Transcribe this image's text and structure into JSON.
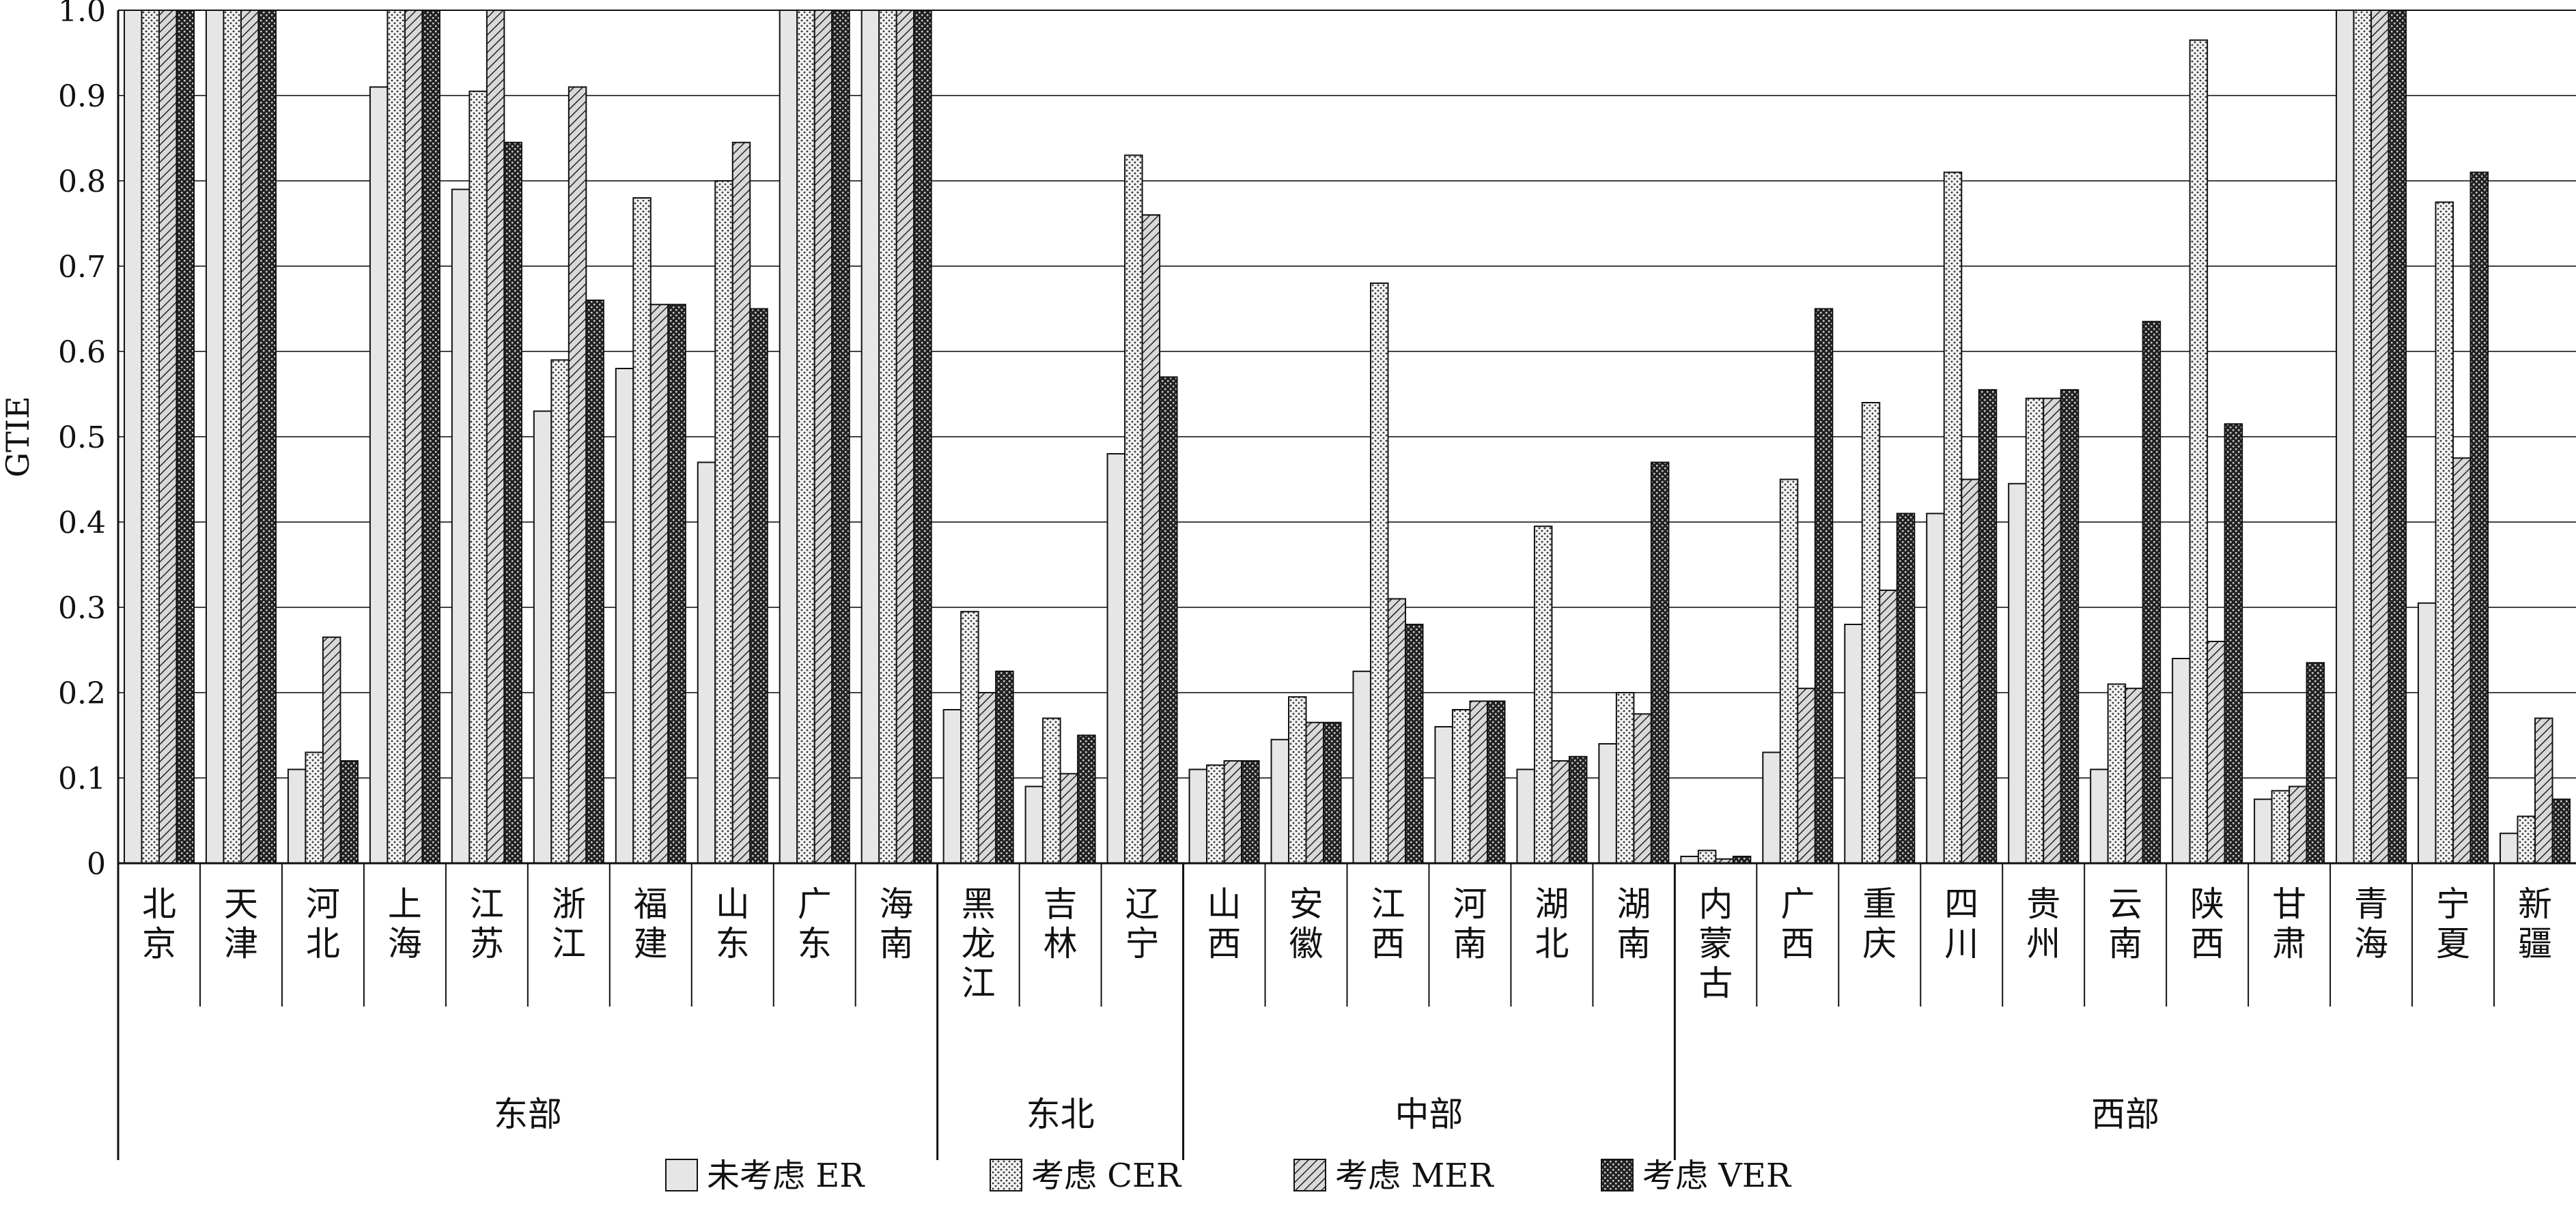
{
  "chart_data": {
    "type": "bar",
    "ylabel": "GTIE",
    "ylim": [
      0,
      1.0
    ],
    "yticks": [
      "0",
      "0.1",
      "0.2",
      "0.3",
      "0.4",
      "0.5",
      "0.6",
      "0.7",
      "0.8",
      "0.9",
      "1.0"
    ],
    "grid": true,
    "legend_position": "bottom",
    "categories": [
      "北京",
      "天津",
      "河北",
      "上海",
      "江苏",
      "浙江",
      "福建",
      "山东",
      "广东",
      "海南",
      "黑龙江",
      "吉林",
      "辽宁",
      "山西",
      "安徽",
      "江西",
      "河南",
      "湖北",
      "湖南",
      "内蒙古",
      "广西",
      "重庆",
      "四川",
      "贵州",
      "云南",
      "陕西",
      "甘肃",
      "青海",
      "宁夏",
      "新疆"
    ],
    "groups": [
      {
        "label": "东部",
        "start": 0,
        "end": 9
      },
      {
        "label": "东北",
        "start": 10,
        "end": 12
      },
      {
        "label": "中部",
        "start": 13,
        "end": 18
      },
      {
        "label": "西部",
        "start": 19,
        "end": 29
      }
    ],
    "series": [
      {
        "name": "未考虑 ER",
        "pattern": "light",
        "values": [
          1.0,
          1.0,
          0.11,
          0.91,
          0.79,
          0.53,
          0.58,
          0.47,
          1.0,
          1.0,
          0.18,
          0.09,
          0.48,
          0.11,
          0.145,
          0.225,
          0.16,
          0.11,
          0.14,
          0.008,
          0.13,
          0.28,
          0.41,
          0.445,
          0.11,
          0.24,
          0.075,
          1.0,
          0.305,
          0.035
        ]
      },
      {
        "name": "考虑 CER",
        "pattern": "dotted",
        "values": [
          1.0,
          1.0,
          0.13,
          1.0,
          0.905,
          0.59,
          0.78,
          0.8,
          1.0,
          1.0,
          0.295,
          0.17,
          0.83,
          0.115,
          0.195,
          0.68,
          0.18,
          0.395,
          0.2,
          0.015,
          0.45,
          0.54,
          0.81,
          0.545,
          0.21,
          0.965,
          0.085,
          1.0,
          0.775,
          0.055
        ]
      },
      {
        "name": "考虑 MER",
        "pattern": "hatched",
        "values": [
          1.0,
          1.0,
          0.265,
          1.0,
          1.0,
          0.91,
          0.655,
          0.845,
          1.0,
          1.0,
          0.2,
          0.105,
          0.76,
          0.12,
          0.165,
          0.31,
          0.19,
          0.12,
          0.175,
          0.005,
          0.205,
          0.32,
          0.45,
          0.545,
          0.205,
          0.26,
          0.09,
          1.0,
          0.475,
          0.17
        ]
      },
      {
        "name": "考虑 VER",
        "pattern": "dark",
        "values": [
          1.0,
          1.0,
          0.12,
          1.0,
          0.845,
          0.66,
          0.655,
          0.65,
          1.0,
          1.0,
          0.225,
          0.15,
          0.57,
          0.12,
          0.165,
          0.28,
          0.19,
          0.125,
          0.47,
          0.008,
          0.65,
          0.41,
          0.555,
          0.555,
          0.635,
          0.515,
          0.235,
          1.0,
          0.81,
          0.075
        ]
      }
    ]
  }
}
